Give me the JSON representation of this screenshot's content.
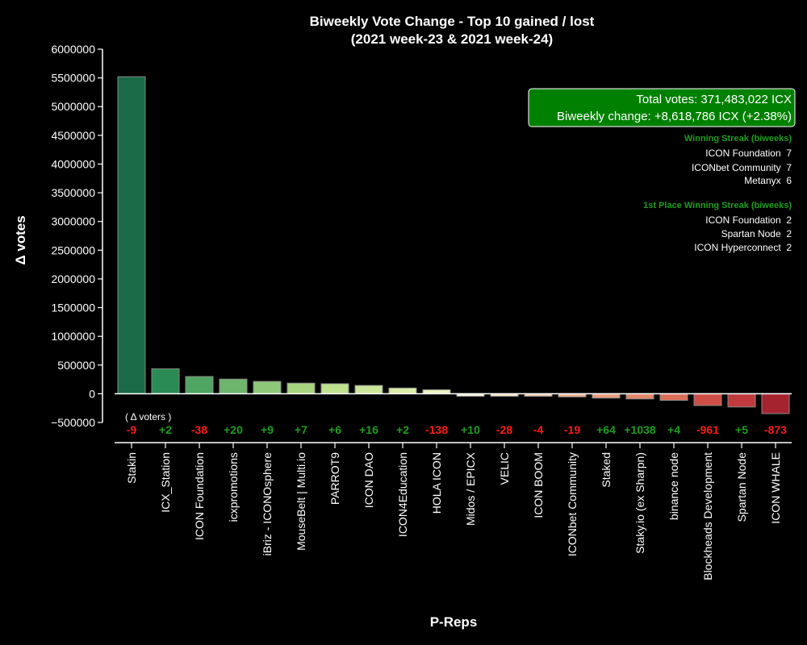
{
  "chart_data": {
    "type": "bar",
    "title_line1": "Biweekly Vote Change - Top 10 gained / lost",
    "title_line2": "(2021 week-23 & 2021 week-24)",
    "xlabel": "P-Reps",
    "ylabel": "Δ votes",
    "ylim": [
      -500000,
      6000000
    ],
    "yticks": [
      -500000,
      0,
      500000,
      1000000,
      1500000,
      2000000,
      2500000,
      3000000,
      3500000,
      4000000,
      4500000,
      5000000,
      5500000,
      6000000
    ],
    "categories": [
      "Stakin",
      "ICX_Station",
      "ICON Foundation",
      "icxpromotions",
      "iBriz - ICONOsphere",
      "MouseBelt | Multi.io",
      "PARROT9",
      "ICON DAO",
      "ICON4Education",
      "HOLA ICON",
      "Midos / EPICX",
      "VELIC",
      "ICON BOOM",
      "ICONbet Community",
      "Staked",
      "Staky.io (ex Sharpn)",
      "binance node",
      "Blockheads Development",
      "Spartan Node",
      "ICON WHALE"
    ],
    "values": [
      5520000,
      435000,
      300000,
      255000,
      215000,
      185000,
      175000,
      145000,
      100000,
      70000,
      -45000,
      -45000,
      -45000,
      -55000,
      -75000,
      -90000,
      -115000,
      -205000,
      -230000,
      -345000
    ],
    "bar_colors": [
      "#1a6b45",
      "#2a8b55",
      "#4fa562",
      "#6db46d",
      "#8dc878",
      "#a6d47e",
      "#bfe18e",
      "#cbe69a",
      "#dbeda8",
      "#e9f3bc",
      "#f6edd9",
      "#f8ddc2",
      "#f3c9a9",
      "#eeb493",
      "#e89d7e",
      "#e2876a",
      "#dc6e58",
      "#cf4f46",
      "#c03a3d",
      "#a5232f"
    ],
    "voters_header": "( Δ voters )",
    "voter_changes": [
      "-9",
      "+2",
      "-38",
      "+20",
      "+9",
      "+7",
      "+6",
      "+16",
      "+2",
      "-138",
      "+10",
      "-28",
      "-4",
      "-19",
      "+64",
      "+1038",
      "+4",
      "-961",
      "+5",
      "-873"
    ],
    "summary_box": {
      "line1": "Total votes: 371,483,022 ICX",
      "line2": "Biweekly change: +8,618,786 ICX (+2.38%)",
      "bg_color": "#008000"
    },
    "winning_streak": {
      "title": "Winning Streak (biweeks)",
      "entries": [
        "ICON Foundation  7",
        "ICONbet Community  7",
        "Metanyx  6"
      ]
    },
    "first_place_streak": {
      "title": "1st Place Winning Streak (biweeks)",
      "entries": [
        "ICON Foundation  2",
        "Spartan Node  2",
        "ICON Hyperconnect  2"
      ]
    },
    "colors": {
      "positive_label": "#1e9e1e",
      "negative_label": "#ff1a1a",
      "streak_title": "#1e9e1e",
      "background": "#000000",
      "axis": "#ffffff"
    }
  }
}
